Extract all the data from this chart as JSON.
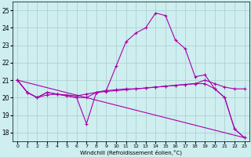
{
  "xlabel": "Windchill (Refroidissement éolien,°C)",
  "xlim": [
    -0.5,
    23.5
  ],
  "ylim": [
    17.5,
    25.5
  ],
  "yticks": [
    18,
    19,
    20,
    21,
    22,
    23,
    24,
    25
  ],
  "xticks": [
    0,
    1,
    2,
    3,
    4,
    5,
    6,
    7,
    8,
    9,
    10,
    11,
    12,
    13,
    14,
    15,
    16,
    17,
    18,
    19,
    20,
    21,
    22,
    23
  ],
  "background_color": "#ceeef0",
  "grid_color": "#aacccc",
  "line_color": "#aa00aa",
  "line1_x": [
    0,
    1,
    2,
    3,
    4,
    5,
    6,
    7,
    8,
    9,
    10,
    11,
    12,
    13,
    14,
    15,
    16,
    17,
    18,
    19,
    20,
    21,
    22,
    23
  ],
  "line1_y": [
    21.0,
    20.3,
    20.0,
    20.3,
    20.2,
    20.1,
    20.0,
    20.0,
    20.3,
    20.4,
    21.8,
    23.2,
    23.7,
    24.0,
    24.85,
    24.7,
    23.3,
    22.8,
    21.2,
    21.3,
    20.5,
    20.0,
    18.2,
    17.7
  ],
  "line2_x": [
    0,
    1,
    2,
    3,
    4,
    5,
    6,
    7,
    8,
    9,
    10,
    11,
    12,
    13,
    14,
    15,
    16,
    17,
    18,
    19,
    20,
    21,
    22,
    23
  ],
  "line2_y": [
    21.0,
    20.3,
    20.0,
    20.3,
    20.2,
    20.1,
    20.0,
    18.5,
    20.3,
    20.4,
    20.45,
    20.5,
    20.5,
    20.55,
    20.6,
    20.65,
    20.7,
    20.75,
    20.8,
    20.8,
    20.5,
    20.0,
    18.2,
    17.7
  ],
  "line3_x": [
    0,
    1,
    2,
    3,
    4,
    5,
    6,
    7,
    8,
    9,
    10,
    11,
    12,
    13,
    14,
    15,
    16,
    17,
    18,
    19,
    20,
    21,
    22,
    23
  ],
  "line3_y": [
    21.0,
    20.3,
    20.0,
    20.15,
    20.2,
    20.15,
    20.1,
    20.2,
    20.3,
    20.35,
    20.4,
    20.45,
    20.5,
    20.55,
    20.6,
    20.65,
    20.7,
    20.75,
    20.8,
    21.0,
    20.8,
    20.6,
    20.5,
    20.5
  ],
  "line4_x": [
    0,
    23
  ],
  "line4_y": [
    21.0,
    17.7
  ]
}
